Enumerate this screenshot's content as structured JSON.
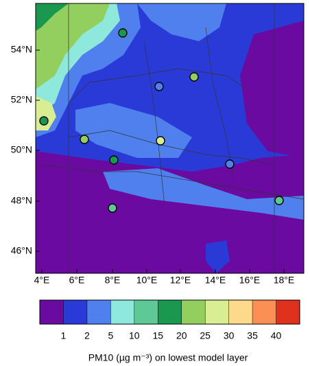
{
  "map": {
    "lat_labels": [
      "54°N",
      "52°N",
      "50°N",
      "48°N",
      "46°N"
    ],
    "lon_labels": [
      "4°E",
      "6°E",
      "8°E",
      "10°E",
      "12°E",
      "14°E",
      "16°E",
      "18°E"
    ]
  },
  "colorbar": {
    "levels": [
      1,
      2,
      5,
      10,
      15,
      20,
      25,
      30,
      35,
      40
    ],
    "colors": [
      "#6a0aa0",
      "#2a3ad6",
      "#4f80ee",
      "#8ee8dc",
      "#5ec996",
      "#1a9850",
      "#93cf5e",
      "#d9ee93",
      "#fdd98c",
      "#fb8f54",
      "#e0301e"
    ]
  },
  "caption": "PM10 (µg m⁻³) on lowest model layer"
}
